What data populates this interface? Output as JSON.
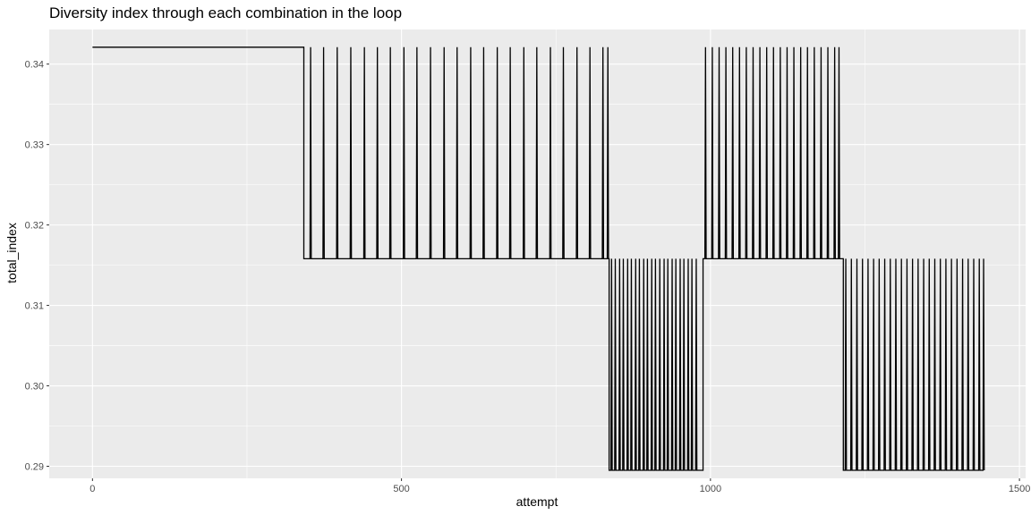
{
  "colors": {
    "panel_background": "#EBEBEB",
    "major_grid": "#FFFFFF",
    "minor_grid": "#F4F4F4",
    "line": "#000000",
    "tick_text": "#4D4D4D"
  },
  "chart_data": {
    "type": "line",
    "title": "Diversity index through each combination in the loop",
    "xlabel": "attempt",
    "ylabel": "total_index",
    "xlim": [
      -70,
      1510
    ],
    "ylim": [
      0.2885,
      0.3443
    ],
    "x_ticks": [
      0,
      500,
      1000,
      1500
    ],
    "x_tick_labels": [
      "0",
      "500",
      "1000",
      "1500"
    ],
    "y_ticks": [
      0.29,
      0.3,
      0.31,
      0.32,
      0.33,
      0.34
    ],
    "y_tick_labels": [
      "0.29",
      "0.30",
      "0.31",
      "0.32",
      "0.33",
      "0.34"
    ],
    "grid": true,
    "legend": "none",
    "series": [
      {
        "levels": {
          "high": 0.3421,
          "mid": 0.3158,
          "low": 0.2895
        },
        "segments": [
          {
            "start": 0,
            "end": 342,
            "base": 0.3421,
            "spikes": []
          },
          {
            "start": 342,
            "end": 836,
            "base": 0.3158,
            "spike_value": 0.3421,
            "spikes": [
              353,
              374,
              396,
              418,
              440,
              461,
              482,
              504,
              525,
              547,
              569,
              590,
              612,
              633,
              655,
              676,
              698,
              719,
              741,
              762,
              784,
              805,
              826,
              834
            ]
          },
          {
            "start": 836,
            "end": 988,
            "base": 0.2895,
            "spike_value": 0.3158,
            "spikes": [
              840,
              846,
              853,
              859,
              866,
              872,
              879,
              885,
              892,
              898,
              905,
              911,
              918,
              925,
              931,
              938,
              944,
              951,
              957,
              964,
              970,
              977
            ]
          },
          {
            "start": 988,
            "end": 1215,
            "base": 0.3158,
            "spike_value": 0.3421,
            "spikes": [
              992,
              1003,
              1014,
              1025,
              1036,
              1047,
              1058,
              1069,
              1080,
              1091,
              1102,
              1113,
              1124,
              1135,
              1146,
              1157,
              1168,
              1179,
              1190,
              1201,
              1208
            ]
          },
          {
            "start": 1215,
            "end": 1443,
            "base": 0.2895,
            "spike_value": 0.3158,
            "spikes": [
              1219,
              1228,
              1237,
              1246,
              1255,
              1264,
              1273,
              1282,
              1291,
              1300,
              1309,
              1318,
              1327,
              1336,
              1345,
              1354,
              1363,
              1372,
              1381,
              1390,
              1399,
              1408,
              1417,
              1426,
              1435,
              1442
            ]
          }
        ]
      }
    ]
  }
}
